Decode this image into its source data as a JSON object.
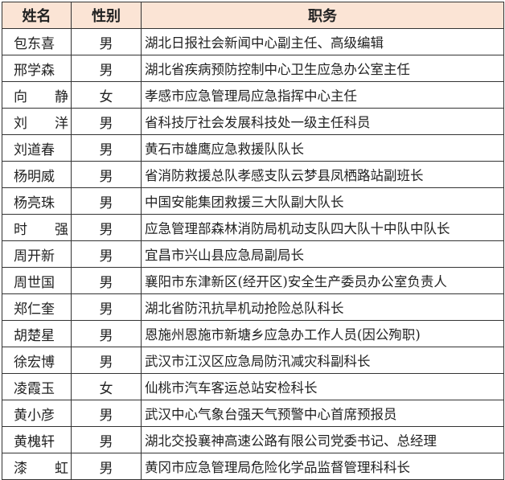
{
  "headers": {
    "name": "姓名",
    "gender": "性别",
    "duty": "职务"
  },
  "header_bg": "#fbe4d5",
  "rows": [
    {
      "name": "包东喜",
      "gender": "男",
      "duty": "湖北日报社会新闻中心副主任、高级编辑"
    },
    {
      "name": "邢学森",
      "gender": "男",
      "duty": "湖北省疾病预防控制中心卫生应急办公室主任"
    },
    {
      "name": "向　　静",
      "gender": "女",
      "duty": "孝感市应急管理局应急指挥中心主任"
    },
    {
      "name": "刘　　洋",
      "gender": "男",
      "duty": "省科技厅社会发展科技处一级主任科员"
    },
    {
      "name": "刘道春",
      "gender": "男",
      "duty": "黄石市雄鹰应急救援队队长"
    },
    {
      "name": "杨明威",
      "gender": "男",
      "duty": "省消防救援总队孝感支队云梦县凤栖路站副班长"
    },
    {
      "name": "杨亮珠",
      "gender": "男",
      "duty": "中国安能集团救援三大队副大队长"
    },
    {
      "name": "时　　强",
      "gender": "男",
      "duty": "应急管理部森林消防局机动支队四大队十中队中队长"
    },
    {
      "name": "周开新",
      "gender": "男",
      "duty": "宜昌市兴山县应急局副局长"
    },
    {
      "name": "周世国",
      "gender": "男",
      "duty": "襄阳市东津新区(经开区)安全生产委员办公室负责人"
    },
    {
      "name": "郑仁奎",
      "gender": "男",
      "duty": "湖北省防汛抗旱机动抢险总队科长"
    },
    {
      "name": "胡楚星",
      "gender": "男",
      "duty": "恩施州恩施市新塘乡应急办工作人员(因公殉职)"
    },
    {
      "name": "徐宏博",
      "gender": "男",
      "duty": "武汉市江汉区应急局防汛减灾科副科长"
    },
    {
      "name": "凌霞玉",
      "gender": "女",
      "duty": "仙桃市汽车客运总站安检科长"
    },
    {
      "name": "黄小彦",
      "gender": "男",
      "duty": "武汉中心气象台强天气预警中心首席预报员"
    },
    {
      "name": "黄槐轩",
      "gender": "男",
      "duty": "湖北交投襄神高速公路有限公司党委书记、总经理"
    },
    {
      "name": "漆　　虹",
      "gender": "男",
      "duty": "黄冈市应急管理局危险化学品监督管理科科长"
    }
  ]
}
